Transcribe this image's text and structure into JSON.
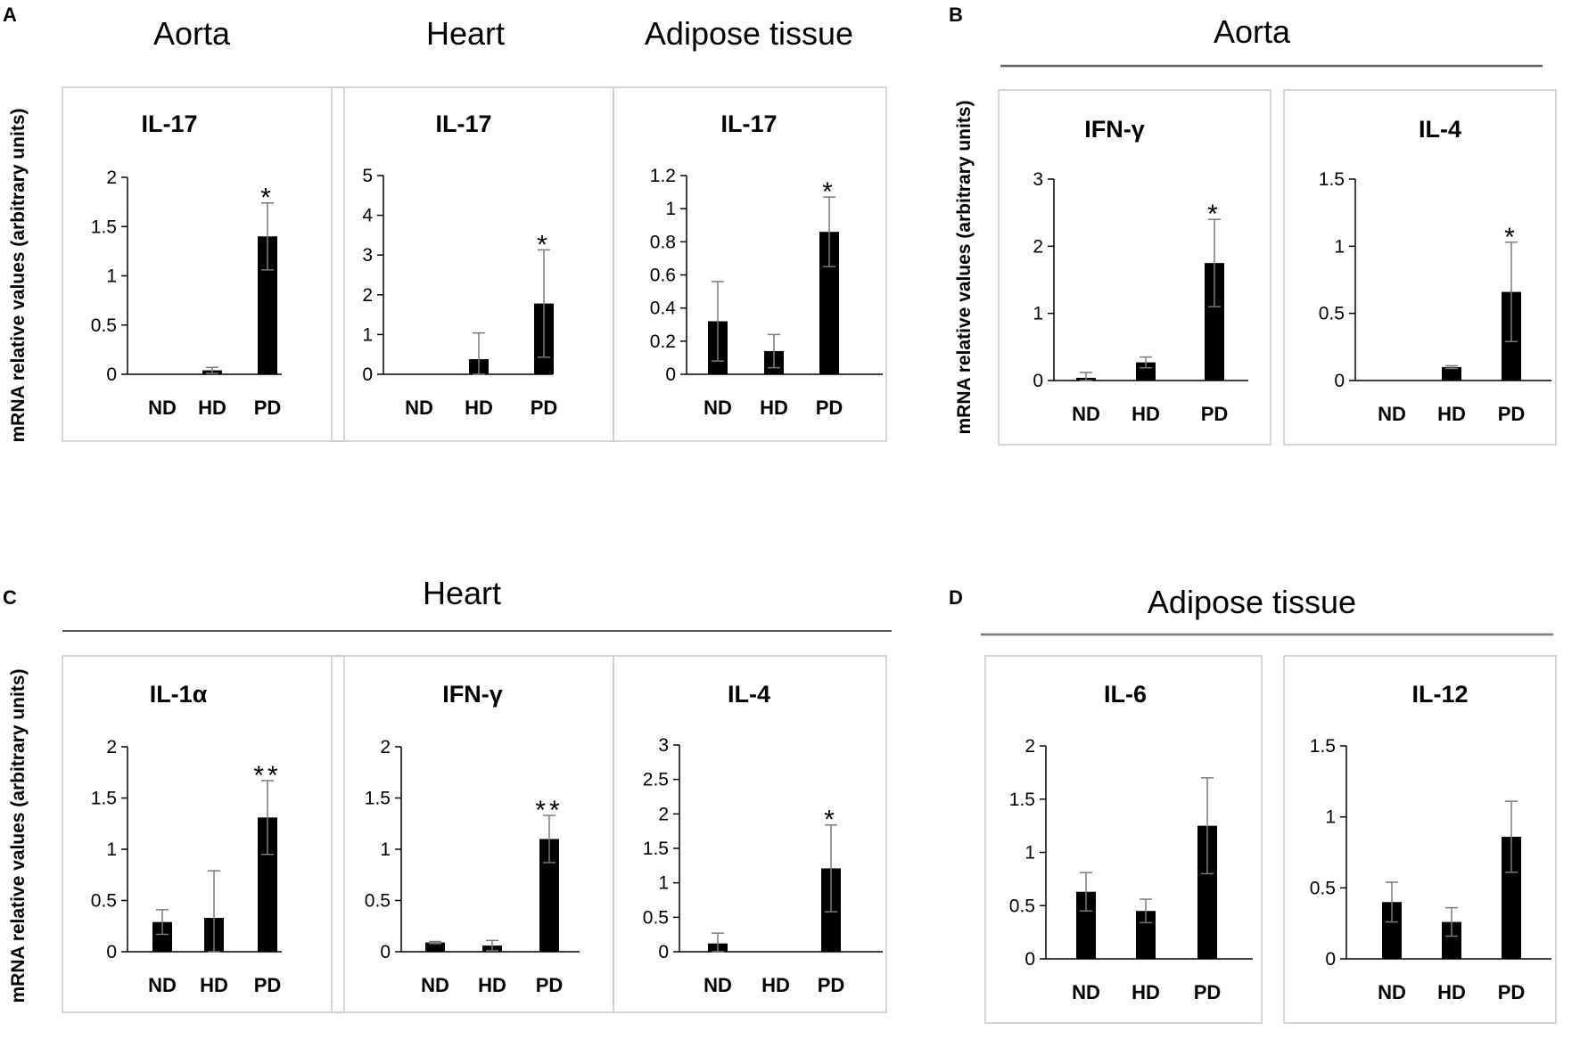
{
  "figure": {
    "y_axis_label": "mRNA relative values (arbitrary units)"
  },
  "groups": [
    {
      "letter": "A",
      "tissue_titles": [
        "Aorta",
        "Heart",
        "Adipose tissue"
      ]
    },
    {
      "letter": "B",
      "tissue_titles": [
        "Aorta"
      ]
    },
    {
      "letter": "C",
      "tissue_titles": [
        "Heart"
      ]
    },
    {
      "letter": "D",
      "tissue_titles": [
        "Adipose tissue"
      ]
    }
  ],
  "chart_data": [
    {
      "type": "bar",
      "panel": "A",
      "tissue": "Aorta",
      "title": "IL-17",
      "categories": [
        "ND",
        "HD",
        "PD"
      ],
      "values": [
        0,
        0.04,
        1.4
      ],
      "errors": [
        0,
        0.03,
        0.34
      ],
      "significance": [
        "",
        "",
        "*"
      ],
      "ylim": [
        0,
        2
      ],
      "yticks": [
        "0",
        "0.5",
        "1",
        "1.5",
        "2"
      ],
      "ylabel": "mRNA relative values (arbitrary units)",
      "xlabel": ""
    },
    {
      "type": "bar",
      "panel": "A",
      "tissue": "Heart",
      "title": "IL-17",
      "categories": [
        "ND",
        "HD",
        "PD"
      ],
      "values": [
        0,
        0.38,
        1.78
      ],
      "errors": [
        0,
        0.66,
        1.35
      ],
      "significance": [
        "",
        "",
        "*"
      ],
      "ylim": [
        0,
        5
      ],
      "yticks": [
        "0",
        "1",
        "2",
        "3",
        "4",
        "5"
      ],
      "ylabel": "",
      "xlabel": ""
    },
    {
      "type": "bar",
      "panel": "A",
      "tissue": "Adipose tissue",
      "title": "IL-17",
      "categories": [
        "ND",
        "HD",
        "PD"
      ],
      "values": [
        0.32,
        0.14,
        0.86
      ],
      "errors": [
        0.24,
        0.1,
        0.21
      ],
      "significance": [
        "",
        "",
        "*"
      ],
      "ylim": [
        0,
        1.2
      ],
      "yticks": [
        "0",
        "0.2",
        "0.4",
        "0.6",
        "0.8",
        "1",
        "1.2"
      ],
      "ylabel": "",
      "xlabel": ""
    },
    {
      "type": "bar",
      "panel": "B",
      "tissue": "Aorta",
      "title": "IFN-γ",
      "categories": [
        "ND",
        "HD",
        "PD"
      ],
      "values": [
        0.04,
        0.27,
        1.75
      ],
      "errors": [
        0.08,
        0.08,
        0.65
      ],
      "significance": [
        "",
        "",
        "*"
      ],
      "ylim": [
        0,
        3
      ],
      "yticks": [
        "0",
        "1",
        "2",
        "3"
      ],
      "ylabel": "mRNA relative values (arbitrary units)",
      "xlabel": ""
    },
    {
      "type": "bar",
      "panel": "B",
      "tissue": "Aorta",
      "title": "IL-4",
      "categories": [
        "ND",
        "HD",
        "PD"
      ],
      "values": [
        0,
        0.1,
        0.66
      ],
      "errors": [
        0,
        0.01,
        0.37
      ],
      "significance": [
        "",
        "",
        "*"
      ],
      "ylim": [
        0,
        1.5
      ],
      "yticks": [
        "0",
        "0.5",
        "1",
        "1.5"
      ],
      "ylabel": "",
      "xlabel": ""
    },
    {
      "type": "bar",
      "panel": "C",
      "tissue": "Heart",
      "title": "IL-1α",
      "categories": [
        "ND",
        "HD",
        "PD"
      ],
      "values": [
        0.29,
        0.33,
        1.31
      ],
      "errors": [
        0.12,
        0.46,
        0.36
      ],
      "significance": [
        "",
        "",
        "**"
      ],
      "ylim": [
        0,
        2
      ],
      "yticks": [
        "0",
        "0.5",
        "1",
        "1.5",
        "2"
      ],
      "ylabel": "mRNA relative values (arbitrary units)",
      "xlabel": ""
    },
    {
      "type": "bar",
      "panel": "C",
      "tissue": "Heart",
      "title": "IFN-γ",
      "categories": [
        "ND",
        "HD",
        "PD"
      ],
      "values": [
        0.09,
        0.06,
        1.1
      ],
      "errors": [
        0.01,
        0.05,
        0.23
      ],
      "significance": [
        "",
        "",
        "**"
      ],
      "ylim": [
        0,
        2
      ],
      "yticks": [
        "0",
        "0.5",
        "1",
        "1.5",
        "2"
      ],
      "ylabel": "",
      "xlabel": ""
    },
    {
      "type": "bar",
      "panel": "C",
      "tissue": "Heart",
      "title": "IL-4",
      "categories": [
        "ND",
        "HD",
        "PD"
      ],
      "values": [
        0.12,
        0,
        1.21
      ],
      "errors": [
        0.15,
        0,
        0.63
      ],
      "significance": [
        "",
        "",
        "*"
      ],
      "ylim": [
        0,
        3
      ],
      "yticks": [
        "0",
        "0.5",
        "1",
        "1.5",
        "2",
        "2.5",
        "3"
      ],
      "ylabel": "",
      "xlabel": ""
    },
    {
      "type": "bar",
      "panel": "D",
      "tissue": "Adipose tissue",
      "title": "IL-6",
      "categories": [
        "ND",
        "HD",
        "PD"
      ],
      "values": [
        0.63,
        0.45,
        1.25
      ],
      "errors": [
        0.18,
        0.11,
        0.45
      ],
      "significance": [
        "",
        "",
        ""
      ],
      "ylim": [
        0,
        2
      ],
      "yticks": [
        "0",
        "0.5",
        "1",
        "1.5",
        "2"
      ],
      "ylabel": "",
      "xlabel": ""
    },
    {
      "type": "bar",
      "panel": "D",
      "tissue": "Adipose tissue",
      "title": "IL-12",
      "categories": [
        "ND",
        "HD",
        "PD"
      ],
      "values": [
        0.4,
        0.26,
        0.86
      ],
      "errors": [
        0.14,
        0.1,
        0.25
      ],
      "significance": [
        "",
        "",
        ""
      ],
      "ylim": [
        0,
        1.5
      ],
      "yticks": [
        "0",
        "0.5",
        "1",
        "1.5"
      ],
      "ylabel": "",
      "xlabel": ""
    }
  ]
}
